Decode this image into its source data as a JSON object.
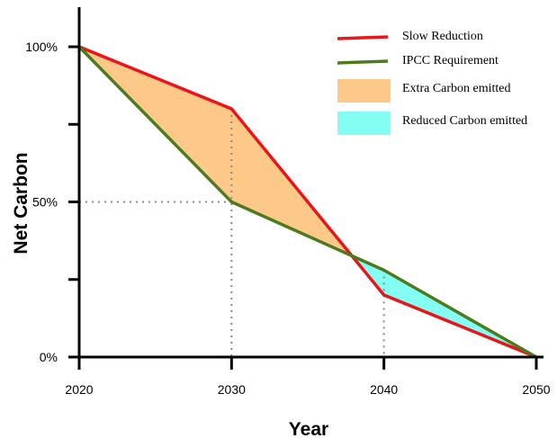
{
  "chart_data": {
    "type": "line",
    "title": "",
    "xlabel": "Year",
    "ylabel": "Net Carbon",
    "x_ticks": [
      "2020",
      "2030",
      "2040",
      "2050"
    ],
    "y_ticks": [
      "0%",
      "50%",
      "100%"
    ],
    "xlim": [
      2020,
      2050
    ],
    "ylim": [
      0,
      100
    ],
    "grid": false,
    "legend_position": "top-right",
    "series": [
      {
        "name": "Slow Reduction",
        "color": "#e8161b",
        "points": [
          [
            2020,
            100
          ],
          [
            2030,
            80
          ],
          [
            2040,
            20
          ],
          [
            2050,
            0
          ]
        ]
      },
      {
        "name": "IPCC Requirement",
        "color": "#4e7a1e",
        "points": [
          [
            2020,
            100
          ],
          [
            2030,
            50
          ],
          [
            2040,
            28
          ],
          [
            2050,
            0
          ]
        ]
      }
    ],
    "areas": [
      {
        "name": "Extra Carbon emitted",
        "color": "#fdc988"
      },
      {
        "name": "Reduced Carbon emitted",
        "color": "#84fdf3"
      }
    ],
    "reference_lines": [
      {
        "x": 2030,
        "y": 80
      },
      {
        "x": 2040,
        "y": 28
      },
      {
        "y": 50,
        "x": 2030
      }
    ]
  }
}
